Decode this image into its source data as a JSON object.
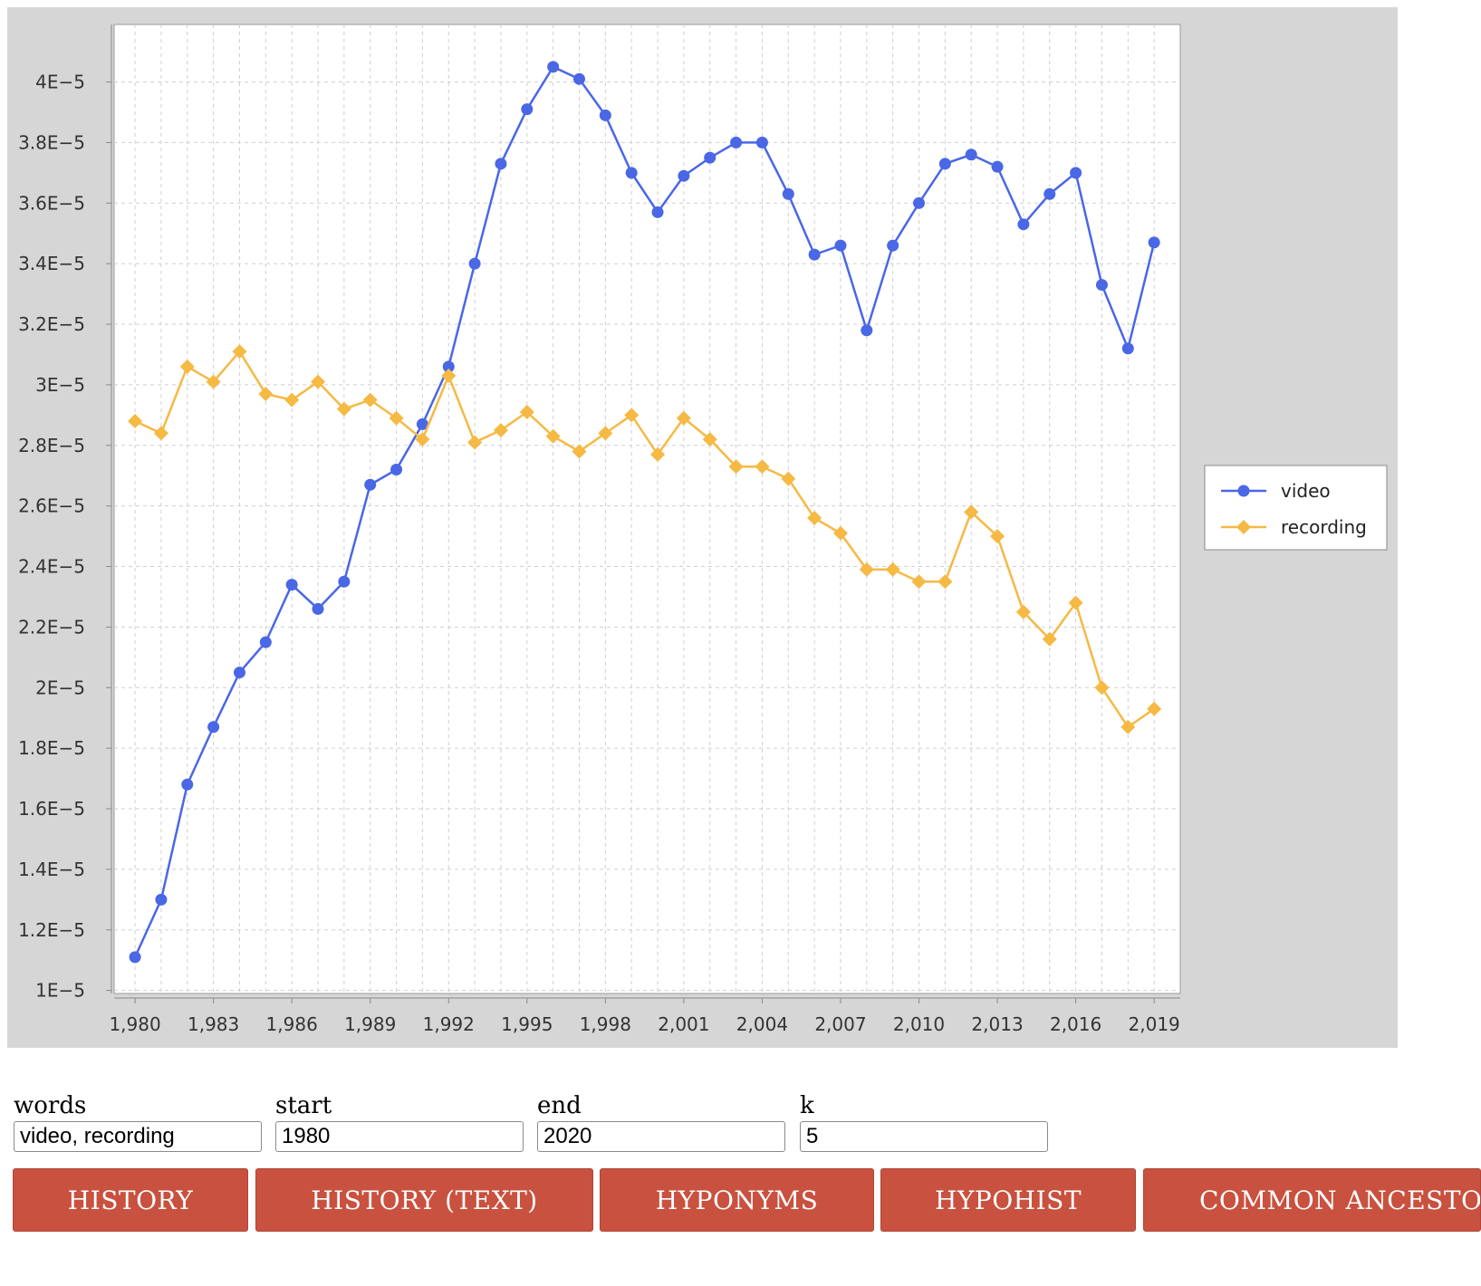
{
  "chart_data": {
    "type": "line",
    "x": [
      1980,
      1981,
      1982,
      1983,
      1984,
      1985,
      1986,
      1987,
      1988,
      1989,
      1990,
      1991,
      1992,
      1993,
      1994,
      1995,
      1996,
      1997,
      1998,
      1999,
      2000,
      2001,
      2002,
      2003,
      2004,
      2005,
      2006,
      2007,
      2008,
      2009,
      2010,
      2011,
      2012,
      2013,
      2014,
      2015,
      2016,
      2017,
      2018,
      2019
    ],
    "x_tick_labels": [
      "1,980",
      "1,983",
      "1,986",
      "1,989",
      "1,992",
      "1,995",
      "1,998",
      "2,001",
      "2,004",
      "2,007",
      "2,010",
      "2,013",
      "2,016",
      "2,019"
    ],
    "y_tick_labels": [
      "1E-5",
      "1.2E-5",
      "1.4E-5",
      "1.6E-5",
      "1.8E-5",
      "2E-5",
      "2.2E-5",
      "2.4E-5",
      "2.6E-5",
      "2.8E-5",
      "3E-5",
      "3.2E-5",
      "3.4E-5",
      "3.6E-5",
      "3.8E-5",
      "4E-5"
    ],
    "ylim": [
      9.9e-06,
      4.19e-05
    ],
    "xlim": [
      1979.2,
      2020.0
    ],
    "grid": true,
    "legend_position": "right",
    "series": [
      {
        "name": "video",
        "color": "#4a67e6",
        "marker": "circle",
        "values": [
          1.11e-05,
          1.3e-05,
          1.68e-05,
          1.87e-05,
          2.05e-05,
          2.15e-05,
          2.34e-05,
          2.26e-05,
          2.35e-05,
          2.67e-05,
          2.72e-05,
          2.87e-05,
          3.06e-05,
          3.4e-05,
          3.73e-05,
          3.91e-05,
          4.05e-05,
          4.01e-05,
          3.89e-05,
          3.7e-05,
          3.57e-05,
          3.69e-05,
          3.75e-05,
          3.8e-05,
          3.8e-05,
          3.63e-05,
          3.43e-05,
          3.46e-05,
          3.18e-05,
          3.46e-05,
          3.6e-05,
          3.73e-05,
          3.76e-05,
          3.72e-05,
          3.53e-05,
          3.63e-05,
          3.7e-05,
          3.33e-05,
          3.12e-05,
          3.47e-05
        ]
      },
      {
        "name": "recording",
        "color": "#f5b944",
        "marker": "diamond",
        "values": [
          2.88e-05,
          2.84e-05,
          3.06e-05,
          3.01e-05,
          3.11e-05,
          2.97e-05,
          2.95e-05,
          3.01e-05,
          2.92e-05,
          2.95e-05,
          2.89e-05,
          2.82e-05,
          3.03e-05,
          2.81e-05,
          2.85e-05,
          2.91e-05,
          2.83e-05,
          2.78e-05,
          2.84e-05,
          2.9e-05,
          2.77e-05,
          2.89e-05,
          2.82e-05,
          2.73e-05,
          2.73e-05,
          2.69e-05,
          2.56e-05,
          2.51e-05,
          2.39e-05,
          2.39e-05,
          2.35e-05,
          2.35e-05,
          2.58e-05,
          2.5e-05,
          2.25e-05,
          2.16e-05,
          2.28e-05,
          2e-05,
          1.87e-05,
          1.93e-05
        ]
      }
    ]
  },
  "form": {
    "words": {
      "label": "words",
      "value": "video, recording"
    },
    "start": {
      "label": "start",
      "value": "1980"
    },
    "end": {
      "label": "end",
      "value": "2020"
    },
    "k": {
      "label": "k",
      "value": "5"
    }
  },
  "buttons": {
    "history": "HISTORY",
    "history_text": "HISTORY (TEXT)",
    "hyponyms": "HYPONYMS",
    "hypohist": "HYPOHIST",
    "common_ancestors": "COMMON ANCESTORS"
  },
  "colors": {
    "panel_bg": "#d6d6d6",
    "plot_bg": "#ffffff",
    "grid": "#cfcfcf",
    "button_bg": "#c9513f",
    "button_text": "#ffffff"
  }
}
